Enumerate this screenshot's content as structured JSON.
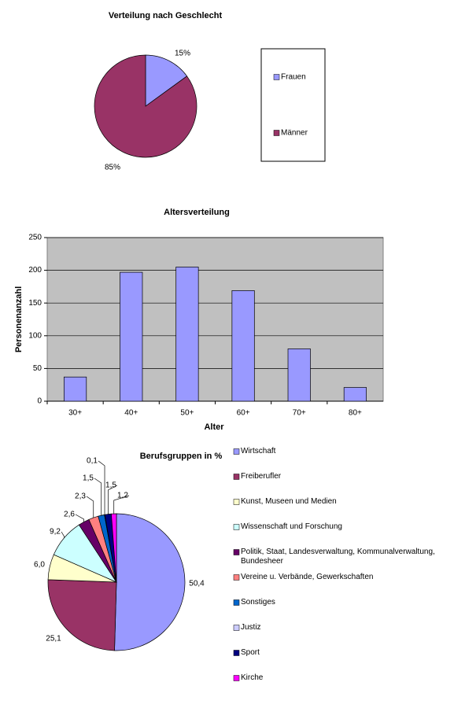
{
  "chart_data": [
    {
      "type": "pie",
      "title": "Verteilung nach Geschlecht",
      "categories": [
        "Frauen",
        "Männer"
      ],
      "values": [
        15,
        85
      ],
      "value_labels": [
        "15%",
        "85%"
      ],
      "colors": [
        "#9999ff",
        "#993366"
      ]
    },
    {
      "type": "bar",
      "title": "Altersverteilung",
      "xlabel": "Alter",
      "ylabel": "Personenanzahl",
      "categories": [
        "30+",
        "40+",
        "50+",
        "60+",
        "70+",
        "80+"
      ],
      "values": [
        37,
        197,
        205,
        169,
        80,
        21
      ],
      "color": "#9999ff",
      "ylim": [
        0,
        250
      ],
      "yticks": [
        0,
        50,
        100,
        150,
        200,
        250
      ],
      "grid": true
    },
    {
      "type": "pie",
      "title": "Berufsgruppen in %",
      "categories": [
        "Wirtschaft",
        "Freiberufler",
        "Kunst, Museen und Medien",
        "Wissenschaft und Forschung",
        "Politik, Staat, Landesverwaltung, Kommunalverwaltung, Bundesheer",
        "Vereine u. Verbände, Gewerkschaften",
        "Sonstiges",
        "Justiz",
        "Sport",
        "Kirche"
      ],
      "values": [
        50.4,
        25.1,
        6.0,
        9.2,
        2.6,
        2.3,
        1.5,
        0.1,
        1.5,
        1.2
      ],
      "value_labels": [
        "50,4",
        "25,1",
        "6,0",
        "9,2",
        "2,6",
        "2,3",
        "1,5",
        "0,1",
        "1,5",
        "1,2"
      ],
      "colors": [
        "#9999ff",
        "#993366",
        "#ffffcc",
        "#ccffff",
        "#660066",
        "#ff8080",
        "#0066cc",
        "#ccccff",
        "#000080",
        "#ff00ff"
      ]
    }
  ]
}
